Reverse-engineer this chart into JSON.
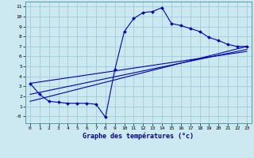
{
  "xlabel": "Graphe des températures (°c)",
  "background_color": "#cce8f0",
  "grid_color": "#a0ccd8",
  "line_color": "#0000bb",
  "xlim": [
    -0.5,
    23.5
  ],
  "ylim": [
    -0.7,
    11.5
  ],
  "xticks": [
    0,
    1,
    2,
    3,
    4,
    5,
    6,
    7,
    8,
    9,
    10,
    11,
    12,
    13,
    14,
    15,
    16,
    17,
    18,
    19,
    20,
    21,
    22,
    23
  ],
  "yticks": [
    0,
    1,
    2,
    3,
    4,
    5,
    6,
    7,
    8,
    9,
    10,
    11
  ],
  "ytick_labels": [
    "-0",
    "1",
    "2",
    "3",
    "4",
    "5",
    "6",
    "7",
    "8",
    "9",
    "10",
    "11"
  ],
  "curve1_x": [
    0,
    1,
    2,
    3,
    4,
    5,
    6,
    7,
    8,
    9,
    10,
    11,
    12,
    13,
    14,
    15,
    16,
    17,
    18,
    19,
    20,
    21,
    22,
    23
  ],
  "curve1_y": [
    3.3,
    2.2,
    1.5,
    1.4,
    1.3,
    1.3,
    1.3,
    1.2,
    -0.1,
    4.7,
    8.5,
    9.8,
    10.4,
    10.5,
    10.9,
    9.3,
    9.1,
    8.8,
    8.5,
    7.9,
    7.6,
    7.2,
    7.0,
    7.0
  ],
  "line2_x": [
    0,
    23
  ],
  "line2_y": [
    1.5,
    7.0
  ],
  "line3_x": [
    0,
    23
  ],
  "line3_y": [
    2.2,
    6.7
  ],
  "line4_x": [
    0,
    23
  ],
  "line4_y": [
    3.3,
    6.5
  ]
}
